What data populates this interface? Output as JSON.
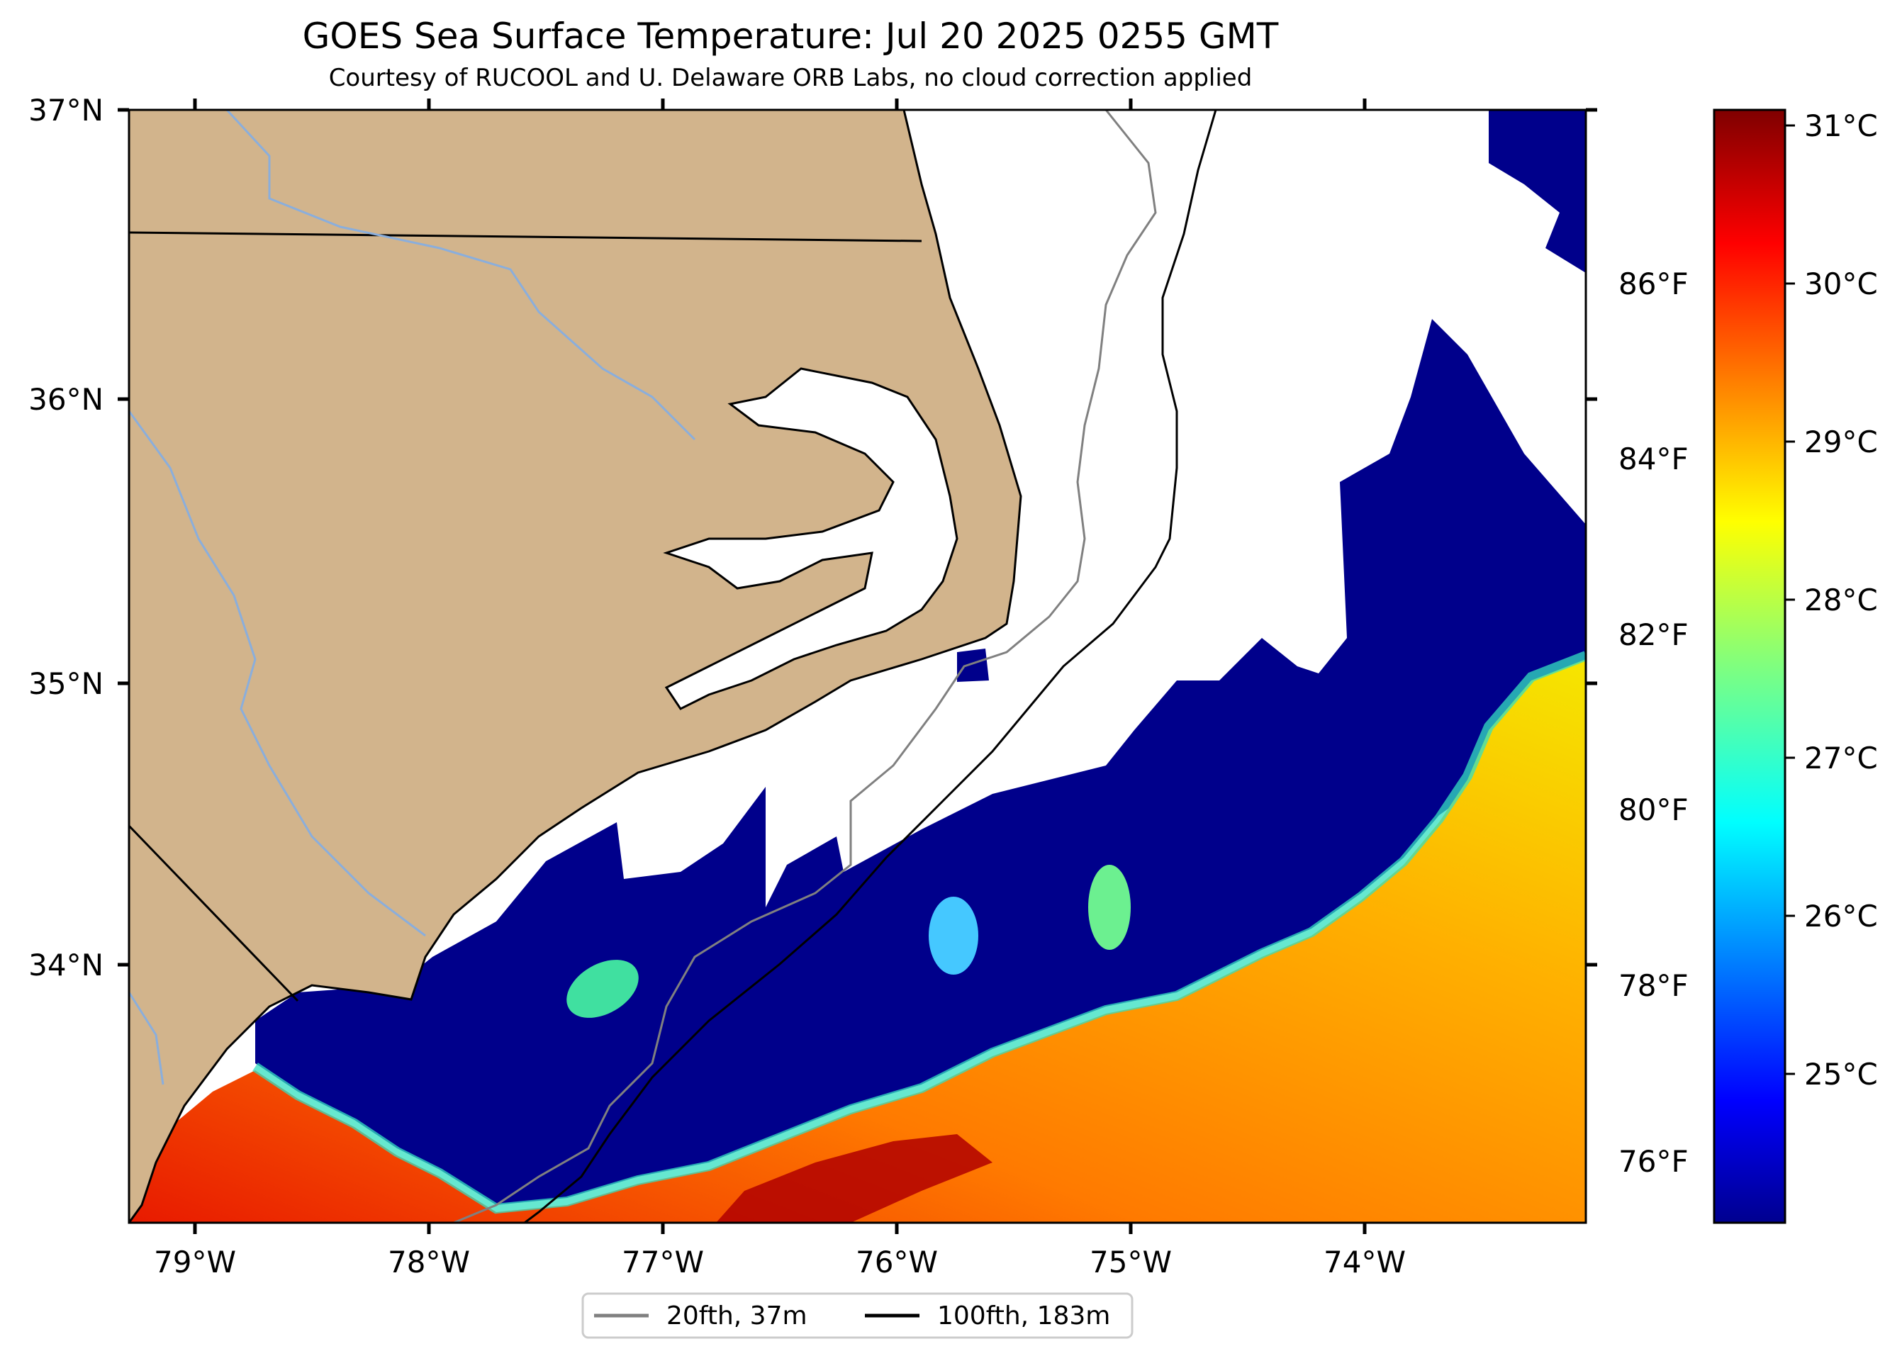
{
  "title": "GOES Sea Surface Temperature: Jul 20 2025 0255 GMT",
  "subtitle": "Courtesy of RUCOOL and U. Delaware ORB Labs, no cloud correction applied",
  "map": {
    "lat_labels": [
      "37°N",
      "36°N",
      "35°N",
      "34°N"
    ],
    "lon_labels": [
      "79°W",
      "78°W",
      "77°W",
      "76°W",
      "75°W",
      "74°W"
    ],
    "land_color": "#d2b48c",
    "cloud_color": "#ffffff",
    "cold_water_color": "#00008b"
  },
  "legend": {
    "items": [
      {
        "label": "20fth, 37m",
        "color": "#808080"
      },
      {
        "label": "100fth, 183m",
        "color": "#000000"
      }
    ]
  },
  "colorbar": {
    "celsius_labels": [
      "31°C",
      "30°C",
      "29°C",
      "28°C",
      "27°C",
      "26°C",
      "25°C"
    ],
    "fahrenheit_labels": [
      "86°F",
      "84°F",
      "82°F",
      "80°F",
      "78°F",
      "76°F"
    ],
    "colormap": "jet"
  }
}
